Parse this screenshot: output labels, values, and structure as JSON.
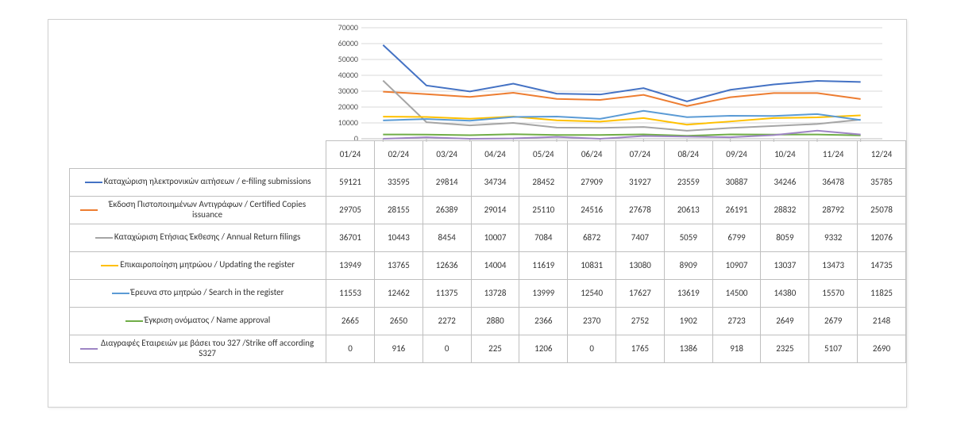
{
  "chart": {
    "type": "line",
    "background_color": "#ffffff",
    "grid_color": "#d9d9d9",
    "axis_color": "#bfbfbf",
    "ylim": [
      0,
      70000
    ],
    "yticks": [
      0,
      10000,
      20000,
      30000,
      40000,
      50000,
      60000,
      70000
    ],
    "ytick_labels": [
      "0",
      "10000",
      "20000",
      "30000",
      "40000",
      "50000",
      "60000",
      "70000"
    ],
    "categories": [
      "01/24",
      "02/24",
      "03/24",
      "04/24",
      "05/24",
      "06/24",
      "07/24",
      "08/24",
      "09/24",
      "10/24",
      "11/24",
      "12/24"
    ],
    "label_fontsize": 10,
    "line_width": 2,
    "series": [
      {
        "name": "Καταχώριση ηλεκτρονικών αιτήσεων / e-filing submissions",
        "color": "#4472c4",
        "values": [
          59121,
          33595,
          29814,
          34734,
          28452,
          27909,
          31927,
          23559,
          30887,
          34246,
          36478,
          35785
        ]
      },
      {
        "name": "Έκδοση Πιστοποιημένων Αντιγράφων / Certified Copies issuance",
        "color": "#ed7d31",
        "values": [
          29705,
          28155,
          26389,
          29014,
          25110,
          24516,
          27678,
          20613,
          26191,
          28832,
          28792,
          25078
        ]
      },
      {
        "name": "Καταχώριση Ετήσιας Έκθεσης / Annual Return filings",
        "color": "#a5a5a5",
        "values": [
          36701,
          10443,
          8454,
          10007,
          7084,
          6872,
          7407,
          5059,
          6799,
          8059,
          9332,
          12076
        ]
      },
      {
        "name": "Επικαιροποίηση μητρώου / Updating the register",
        "color": "#ffc000",
        "values": [
          13949,
          13765,
          12636,
          14004,
          11619,
          10831,
          13080,
          8909,
          10907,
          13037,
          13473,
          14735
        ]
      },
      {
        "name": "Έρευνα στο μητρώο / Search in the register",
        "color": "#5b9bd5",
        "values": [
          11553,
          12462,
          11375,
          13728,
          13999,
          12540,
          17627,
          13619,
          14500,
          14380,
          15570,
          11825
        ]
      },
      {
        "name": "Έγκριση ονόματος / Name approval",
        "color": "#70ad47",
        "values": [
          2665,
          2650,
          2272,
          2880,
          2366,
          2370,
          2752,
          1902,
          2723,
          2649,
          2679,
          2148
        ]
      },
      {
        "name": "Διαγραφές Εταιρειών  με  βάσει του 327 /Strike off according S327",
        "color": "#9e85c4",
        "values": [
          0,
          916,
          0,
          225,
          1206,
          0,
          1765,
          1386,
          918,
          2325,
          5107,
          2690
        ]
      }
    ]
  }
}
